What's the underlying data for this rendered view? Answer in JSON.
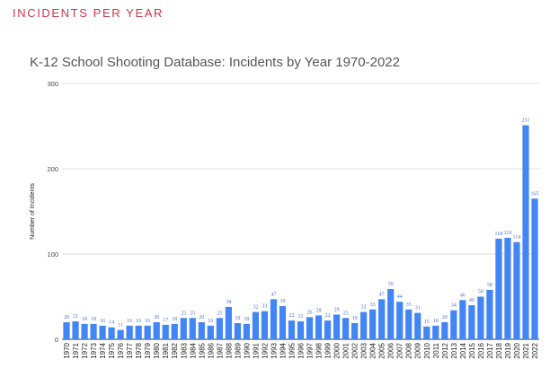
{
  "page": {
    "section_heading": "INCIDENTS PER YEAR"
  },
  "chart_data": {
    "type": "bar",
    "title": "K-12 School Shooting Database: Incidents by Year 1970-2022",
    "xlabel": "",
    "ylabel": "Number of Incidents",
    "ylim": [
      0,
      300
    ],
    "yticks": [
      0,
      100,
      200,
      300
    ],
    "grid": true,
    "legend": "none",
    "bar_color": "#4285f4",
    "label_color": "#4a6fd0",
    "categories": [
      "1970",
      "1971",
      "1972",
      "1973",
      "1974",
      "1975",
      "1976",
      "1977",
      "1978",
      "1979",
      "1980",
      "1981",
      "1982",
      "1983",
      "1984",
      "1985",
      "1986",
      "1987",
      "1988",
      "1989",
      "1990",
      "1991",
      "1992",
      "1993",
      "1994",
      "1995",
      "1996",
      "1997",
      "1998",
      "1999",
      "2000",
      "2001",
      "2002",
      "2003",
      "2004",
      "2005",
      "2006",
      "2007",
      "2008",
      "2009",
      "2010",
      "2011",
      "2012",
      "2013",
      "2014",
      "2015",
      "2016",
      "2017",
      "2018",
      "2019",
      "2020",
      "2021",
      "2022"
    ],
    "values": [
      20,
      21,
      18,
      18,
      16,
      14,
      11,
      16,
      16,
      16,
      20,
      17,
      18,
      25,
      25,
      20,
      16,
      25,
      38,
      19,
      18,
      32,
      33,
      47,
      39,
      22,
      21,
      26,
      28,
      22,
      29,
      25,
      19,
      32,
      35,
      47,
      59,
      44,
      35,
      31,
      15,
      16,
      20,
      34,
      46,
      40,
      50,
      58,
      118,
      119,
      114,
      251,
      165
    ]
  }
}
